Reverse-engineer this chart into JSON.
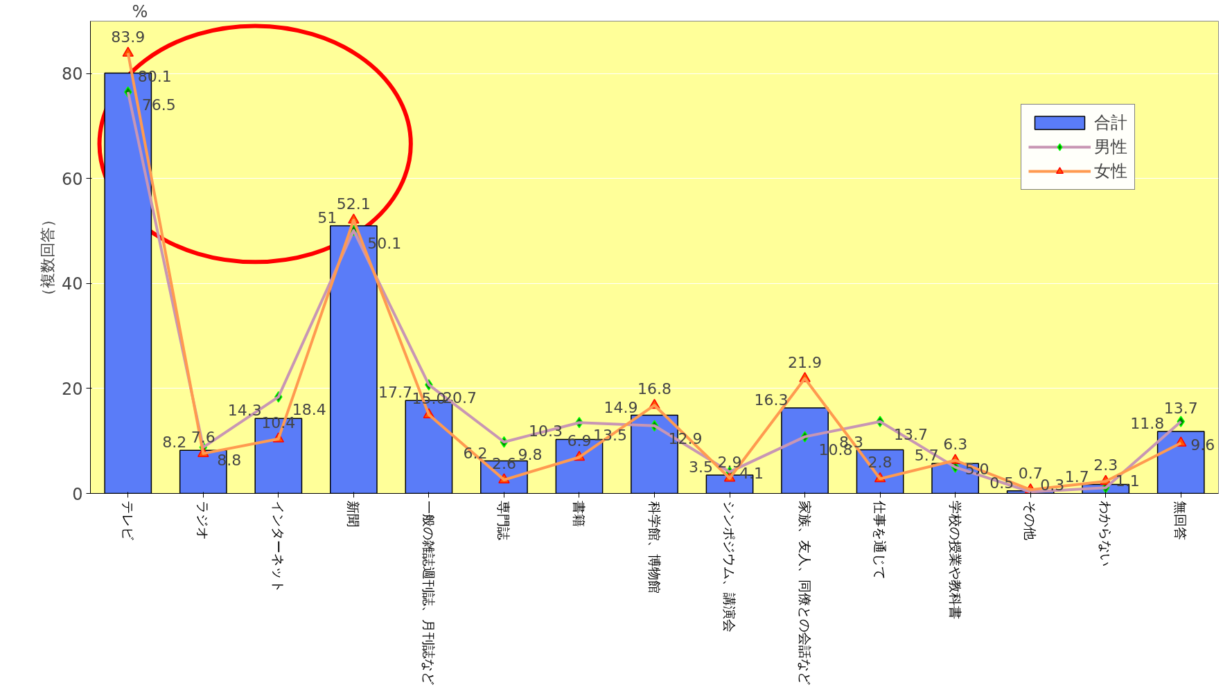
{
  "chart_data": {
    "type": "bar",
    "ylabel": "（複数回答）",
    "annotations": [
      "%"
    ],
    "categories": [
      "テレビ",
      "ラジオ",
      "インターネット",
      "新聞",
      "一般の雑誌週刊誌、月刊誌など",
      "専門誌",
      "書籍",
      "科学館、博物館",
      "シンポジウム、講演会",
      "家族、友人、同僚との会話など",
      "仕事を通じて",
      "学校の授業や教科書",
      "その他",
      "わからない",
      "無回答"
    ],
    "series": [
      {
        "name": "合計",
        "color": "#5a7cf8",
        "values": [
          80.1,
          8.2,
          14.3,
          51,
          17.7,
          6.2,
          10.3,
          14.9,
          3.5,
          16.3,
          8.3,
          5.7,
          0.5,
          1.7,
          11.8
        ],
        "value_labels": [
          "80.1",
          "8.2",
          "14.3",
          "51",
          "17.7",
          "6.2",
          "10.3",
          "14.9",
          "3.5",
          "16.3",
          "8.3",
          "5.7",
          "0.5",
          "1.7",
          "11.8"
        ]
      },
      {
        "name": "男性",
        "type": "line",
        "color": "#c896b4",
        "marker": "diamond",
        "values": [
          76.5,
          8.8,
          18.4,
          50.1,
          20.7,
          9.8,
          13.5,
          12.9,
          4.1,
          10.8,
          13.7,
          5.0,
          0.3,
          1.1,
          13.7
        ],
        "value_labels": [
          "76.5",
          "8.8",
          "18.4",
          "50.1",
          "20.7",
          "9.8",
          "13.5",
          "12.9",
          "4.1",
          "10.8",
          "13.7",
          "5.0",
          "0.3",
          "1.1",
          "13.7"
        ]
      },
      {
        "name": "女性",
        "type": "line",
        "color": "#ff9a50",
        "marker": "triangle",
        "values": [
          83.9,
          7.6,
          10.4,
          52.1,
          15.0,
          2.6,
          6.9,
          16.8,
          2.9,
          21.9,
          2.8,
          6.3,
          0.7,
          2.3,
          9.6
        ],
        "value_labels": [
          "83.9",
          "7.6",
          "10.4",
          "52.1",
          "15.0",
          "2.6",
          "6.9",
          "16.8",
          "2.9",
          "21.9",
          "2.8",
          "6.3",
          "0.7",
          "2.3",
          "9.6"
        ]
      }
    ],
    "ylim": [
      0,
      90
    ],
    "yticks": [
      0,
      20,
      40,
      60,
      80
    ],
    "grid": "y",
    "legend": "top right"
  }
}
